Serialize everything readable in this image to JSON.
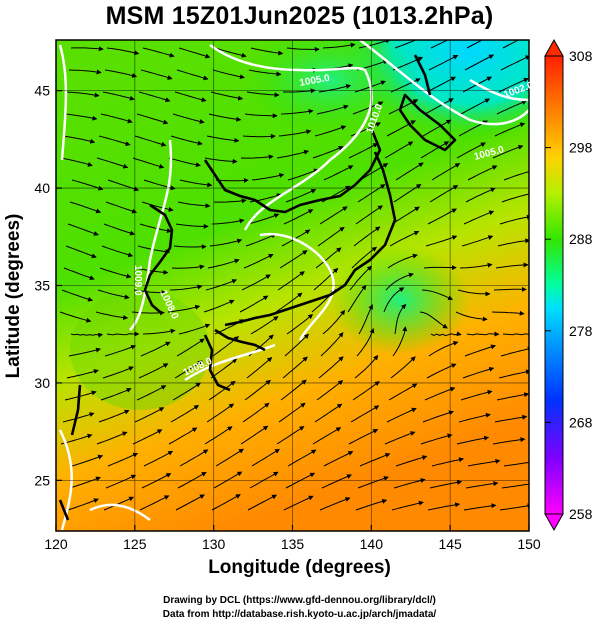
{
  "title": "MSM 15Z01Jun2025 (1013.2hPa)",
  "xaxis": {
    "label": "Longitude (degrees)",
    "min": 120,
    "max": 150,
    "ticks": [
      120,
      125,
      130,
      135,
      140,
      145,
      150
    ]
  },
  "yaxis": {
    "label": "Latitude  (degrees)",
    "min": 22.4,
    "max": 47.6,
    "ticks": [
      25,
      30,
      35,
      40,
      45
    ]
  },
  "colorbar": {
    "min": 258,
    "max": 308,
    "ticks": [
      258,
      268,
      278,
      288,
      298,
      308
    ]
  },
  "contour_labels": [
    "1005.0",
    "1008.0",
    "1009.0",
    "1010.0",
    "1008.0",
    "1005.0",
    "1002.0"
  ],
  "credits": {
    "line1": "Drawing by DCL (https://www.gfd-dennou.org/library/dcl/)",
    "line2": "Data from http://database.rish.kyoto-u.ac.jp/arch/jmadata/"
  },
  "colors": {
    "cold": "#00c8ff",
    "mid": "#33d900",
    "warm": "#ff8c00",
    "contour": "#ffffff",
    "land": "#000000"
  }
}
